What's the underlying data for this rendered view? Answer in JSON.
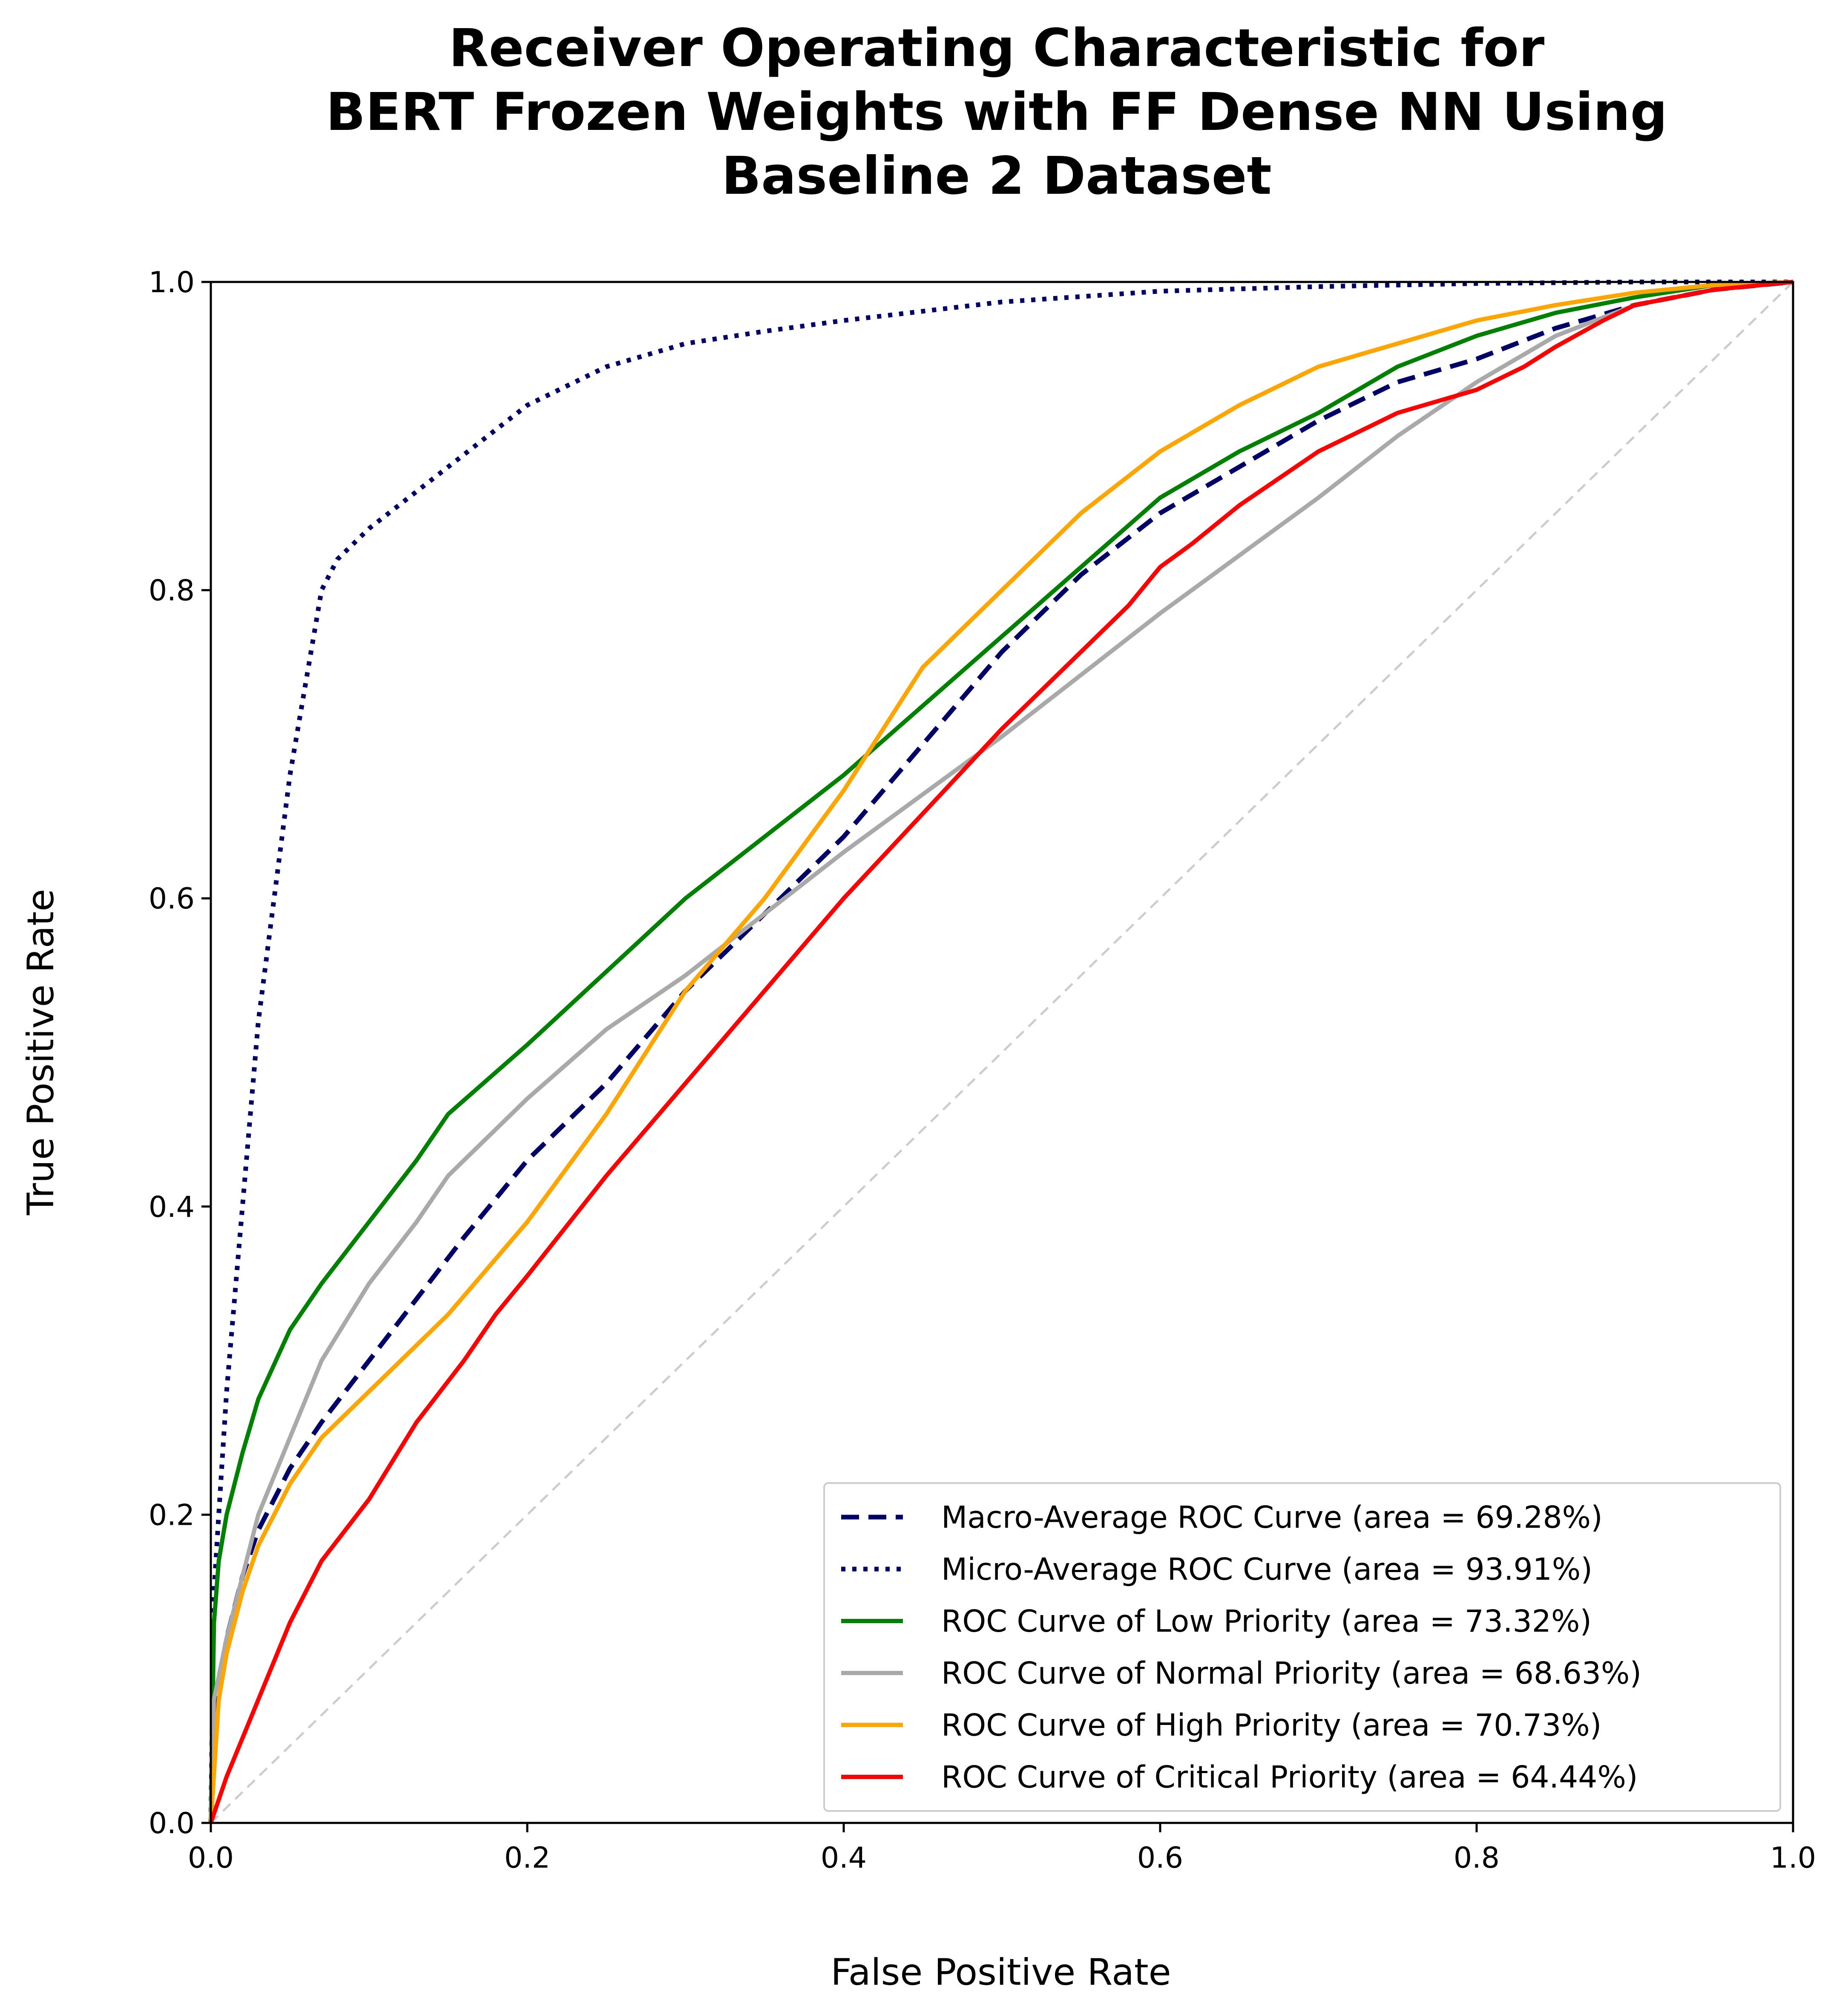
{
  "chart_data": {
    "type": "line",
    "title_lines": [
      "Receiver Operating Characteristic for",
      "BERT Frozen Weights with FF Dense NN Using",
      "Baseline 2 Dataset"
    ],
    "xlabel": "False Positive Rate",
    "ylabel": "True Positive Rate",
    "xlim": [
      0.0,
      1.0
    ],
    "ylim": [
      0.0,
      1.0
    ],
    "xticks": [
      "0.0",
      "0.2",
      "0.4",
      "0.6",
      "0.8",
      "1.0"
    ],
    "yticks": [
      "0.0",
      "0.2",
      "0.4",
      "0.6",
      "0.8",
      "1.0"
    ],
    "grid": false,
    "legend_position": "lower-right",
    "chance_line": {
      "x": [
        0,
        1
      ],
      "y": [
        0,
        1
      ],
      "color": "#cccccc",
      "style": "dashed"
    },
    "series": [
      {
        "name": "Macro-Average ROC Curve (area = 69.28%)",
        "color": "#000066",
        "style": "dashed",
        "x": [
          0.0,
          0.005,
          0.01,
          0.02,
          0.03,
          0.05,
          0.07,
          0.1,
          0.13,
          0.16,
          0.2,
          0.25,
          0.3,
          0.35,
          0.4,
          0.45,
          0.5,
          0.55,
          0.6,
          0.65,
          0.7,
          0.75,
          0.8,
          0.85,
          0.9,
          0.95,
          1.0
        ],
        "y": [
          0.0,
          0.09,
          0.12,
          0.16,
          0.19,
          0.23,
          0.26,
          0.3,
          0.34,
          0.38,
          0.43,
          0.48,
          0.54,
          0.59,
          0.64,
          0.7,
          0.76,
          0.81,
          0.85,
          0.88,
          0.91,
          0.935,
          0.95,
          0.97,
          0.985,
          0.995,
          1.0
        ]
      },
      {
        "name": "Micro-Average ROC Curve (area = 93.91%)",
        "color": "#000066",
        "style": "dotted",
        "x": [
          0.0,
          0.002,
          0.005,
          0.01,
          0.02,
          0.03,
          0.04,
          0.05,
          0.06,
          0.07,
          0.08,
          0.1,
          0.15,
          0.2,
          0.25,
          0.3,
          0.35,
          0.4,
          0.5,
          0.6,
          0.7,
          0.8,
          0.9,
          1.0
        ],
        "y": [
          0.0,
          0.15,
          0.2,
          0.28,
          0.4,
          0.52,
          0.6,
          0.68,
          0.74,
          0.8,
          0.82,
          0.84,
          0.88,
          0.92,
          0.945,
          0.96,
          0.968,
          0.975,
          0.987,
          0.994,
          0.997,
          0.999,
          1.0,
          1.0
        ]
      },
      {
        "name": "ROC Curve of Low Priority (area = 73.32%)",
        "color": "#008000",
        "style": "solid",
        "x": [
          0.0,
          0.002,
          0.005,
          0.01,
          0.02,
          0.03,
          0.05,
          0.07,
          0.1,
          0.13,
          0.15,
          0.2,
          0.3,
          0.4,
          0.5,
          0.55,
          0.6,
          0.65,
          0.7,
          0.75,
          0.8,
          0.85,
          0.9,
          0.95,
          1.0
        ],
        "y": [
          0.0,
          0.13,
          0.17,
          0.2,
          0.24,
          0.275,
          0.32,
          0.35,
          0.39,
          0.43,
          0.46,
          0.505,
          0.6,
          0.68,
          0.77,
          0.815,
          0.86,
          0.89,
          0.915,
          0.945,
          0.965,
          0.98,
          0.99,
          0.998,
          1.0
        ]
      },
      {
        "name": "ROC Curve of Normal Priority (area = 68.63%)",
        "color": "#a9a9a9",
        "style": "solid",
        "x": [
          0.0,
          0.002,
          0.01,
          0.02,
          0.03,
          0.05,
          0.07,
          0.1,
          0.13,
          0.15,
          0.2,
          0.25,
          0.3,
          0.4,
          0.5,
          0.6,
          0.7,
          0.75,
          0.8,
          0.85,
          0.9,
          0.95,
          1.0
        ],
        "y": [
          0.0,
          0.08,
          0.12,
          0.16,
          0.2,
          0.25,
          0.3,
          0.35,
          0.39,
          0.42,
          0.47,
          0.515,
          0.55,
          0.63,
          0.705,
          0.785,
          0.86,
          0.9,
          0.935,
          0.965,
          0.985,
          0.995,
          1.0
        ]
      },
      {
        "name": "ROC Curve of High Priority (area = 70.73%)",
        "color": "#ffa500",
        "style": "solid",
        "x": [
          0.0,
          0.005,
          0.01,
          0.02,
          0.03,
          0.05,
          0.07,
          0.1,
          0.15,
          0.2,
          0.25,
          0.3,
          0.35,
          0.4,
          0.45,
          0.5,
          0.55,
          0.6,
          0.65,
          0.7,
          0.75,
          0.8,
          0.85,
          0.9,
          0.95,
          1.0
        ],
        "y": [
          0.0,
          0.08,
          0.11,
          0.15,
          0.18,
          0.22,
          0.25,
          0.28,
          0.33,
          0.39,
          0.46,
          0.54,
          0.6,
          0.67,
          0.75,
          0.8,
          0.85,
          0.89,
          0.92,
          0.945,
          0.96,
          0.975,
          0.985,
          0.993,
          0.998,
          1.0
        ]
      },
      {
        "name": "ROC Curve of Critical Priority (area = 64.44%)",
        "color": "#ff0000",
        "style": "solid",
        "x": [
          0.0,
          0.01,
          0.03,
          0.05,
          0.07,
          0.1,
          0.13,
          0.16,
          0.18,
          0.2,
          0.25,
          0.3,
          0.4,
          0.5,
          0.58,
          0.6,
          0.62,
          0.65,
          0.7,
          0.75,
          0.8,
          0.83,
          0.85,
          0.88,
          0.9,
          0.95,
          1.0
        ],
        "y": [
          0.0,
          0.03,
          0.08,
          0.13,
          0.17,
          0.21,
          0.26,
          0.3,
          0.33,
          0.355,
          0.42,
          0.48,
          0.6,
          0.71,
          0.79,
          0.815,
          0.83,
          0.855,
          0.89,
          0.915,
          0.93,
          0.945,
          0.958,
          0.975,
          0.985,
          0.995,
          1.0
        ]
      }
    ]
  }
}
